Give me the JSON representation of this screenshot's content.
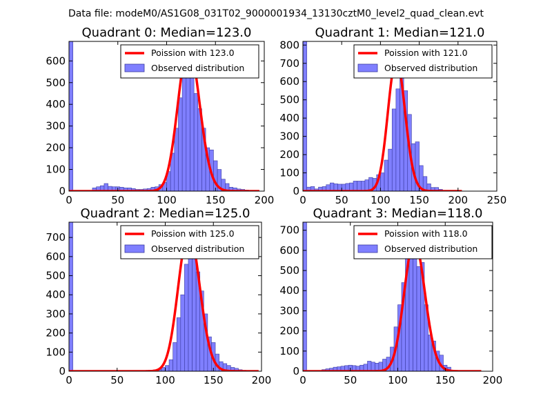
{
  "suptitle": "Data file: modeM0/AS1G08_031T02_9000001934_13130cztM0_level2_quad_clean.evt",
  "colors": {
    "bar_fill": "#7f7fff",
    "bar_edge": "#3a3a9e",
    "model_line": "#ff0000",
    "frame": "#000000"
  },
  "chart_data": [
    {
      "type": "bar",
      "title": "Quadrant 0: Median=123.0",
      "xlim": [
        0,
        200
      ],
      "ylim": [
        0,
        690
      ],
      "xticks": [
        0,
        50,
        100,
        150,
        200
      ],
      "yticks": [
        0,
        100,
        200,
        300,
        400,
        500,
        600
      ],
      "bin_width": 4,
      "hist": [
        {
          "x": 0,
          "y": 690
        },
        {
          "x": 24,
          "y": 15
        },
        {
          "x": 28,
          "y": 20
        },
        {
          "x": 32,
          "y": 25
        },
        {
          "x": 36,
          "y": 35
        },
        {
          "x": 40,
          "y": 22
        },
        {
          "x": 44,
          "y": 20
        },
        {
          "x": 48,
          "y": 20
        },
        {
          "x": 52,
          "y": 18
        },
        {
          "x": 56,
          "y": 15
        },
        {
          "x": 60,
          "y": 15
        },
        {
          "x": 64,
          "y": 12
        },
        {
          "x": 68,
          "y": 8
        },
        {
          "x": 72,
          "y": 8
        },
        {
          "x": 76,
          "y": 10
        },
        {
          "x": 80,
          "y": 12
        },
        {
          "x": 84,
          "y": 18
        },
        {
          "x": 88,
          "y": 20
        },
        {
          "x": 92,
          "y": 30
        },
        {
          "x": 96,
          "y": 40
        },
        {
          "x": 100,
          "y": 90
        },
        {
          "x": 104,
          "y": 175
        },
        {
          "x": 108,
          "y": 290
        },
        {
          "x": 112,
          "y": 430
        },
        {
          "x": 116,
          "y": 550
        },
        {
          "x": 120,
          "y": 610
        },
        {
          "x": 124,
          "y": 630
        },
        {
          "x": 128,
          "y": 450
        },
        {
          "x": 132,
          "y": 380
        },
        {
          "x": 136,
          "y": 290
        },
        {
          "x": 140,
          "y": 200
        },
        {
          "x": 144,
          "y": 190
        },
        {
          "x": 148,
          "y": 140
        },
        {
          "x": 152,
          "y": 100
        },
        {
          "x": 156,
          "y": 55
        },
        {
          "x": 160,
          "y": 35
        },
        {
          "x": 164,
          "y": 18
        },
        {
          "x": 168,
          "y": 15
        },
        {
          "x": 172,
          "y": 10
        },
        {
          "x": 176,
          "y": 8
        },
        {
          "x": 180,
          "y": 5
        },
        {
          "x": 184,
          "y": 3
        },
        {
          "x": 188,
          "y": 2
        }
      ],
      "poisson_mean": 123.0,
      "poisson_xrange": [
        0,
        195
      ],
      "legend_line": "Poission with 123.0",
      "legend_bar": "Observed distribution"
    },
    {
      "type": "bar",
      "title": "Quadrant 1: Median=121.0",
      "xlim": [
        0,
        250
      ],
      "ylim": [
        0,
        820
      ],
      "xticks": [
        0,
        50,
        100,
        150,
        200,
        250
      ],
      "yticks": [
        0,
        100,
        200,
        300,
        400,
        500,
        600,
        700,
        800
      ],
      "bin_width": 5,
      "hist": [
        {
          "x": 0,
          "y": 820
        },
        {
          "x": 5,
          "y": 22
        },
        {
          "x": 10,
          "y": 25
        },
        {
          "x": 15,
          "y": 12
        },
        {
          "x": 20,
          "y": 22
        },
        {
          "x": 25,
          "y": 25
        },
        {
          "x": 30,
          "y": 35
        },
        {
          "x": 35,
          "y": 45
        },
        {
          "x": 40,
          "y": 40
        },
        {
          "x": 45,
          "y": 38
        },
        {
          "x": 50,
          "y": 38
        },
        {
          "x": 55,
          "y": 42
        },
        {
          "x": 60,
          "y": 45
        },
        {
          "x": 65,
          "y": 55
        },
        {
          "x": 70,
          "y": 55
        },
        {
          "x": 75,
          "y": 55
        },
        {
          "x": 80,
          "y": 62
        },
        {
          "x": 85,
          "y": 75
        },
        {
          "x": 90,
          "y": 70
        },
        {
          "x": 95,
          "y": 90
        },
        {
          "x": 100,
          "y": 100
        },
        {
          "x": 105,
          "y": 170
        },
        {
          "x": 110,
          "y": 230
        },
        {
          "x": 115,
          "y": 450
        },
        {
          "x": 120,
          "y": 560
        },
        {
          "x": 125,
          "y": 680
        },
        {
          "x": 130,
          "y": 550
        },
        {
          "x": 135,
          "y": 420
        },
        {
          "x": 140,
          "y": 260
        },
        {
          "x": 145,
          "y": 270
        },
        {
          "x": 150,
          "y": 140
        },
        {
          "x": 155,
          "y": 80
        },
        {
          "x": 160,
          "y": 40
        },
        {
          "x": 165,
          "y": 20
        },
        {
          "x": 170,
          "y": 20
        },
        {
          "x": 175,
          "y": 10
        }
      ],
      "poisson_mean": 121.0,
      "poisson_xrange": [
        0,
        205
      ],
      "legend_line": "Poission with 121.0",
      "legend_bar": "Observed distribution"
    },
    {
      "type": "bar",
      "title": "Quadrant 2: Median=125.0",
      "xlim": [
        0,
        200
      ],
      "ylim": [
        0,
        780
      ],
      "xticks": [
        0,
        50,
        100,
        150,
        200
      ],
      "yticks": [
        0,
        100,
        200,
        300,
        400,
        500,
        600,
        700
      ],
      "bin_width": 4,
      "hist": [
        {
          "x": 0,
          "y": 780
        },
        {
          "x": 80,
          "y": 5
        },
        {
          "x": 84,
          "y": 5
        },
        {
          "x": 88,
          "y": 8
        },
        {
          "x": 92,
          "y": 10
        },
        {
          "x": 96,
          "y": 20
        },
        {
          "x": 100,
          "y": 30
        },
        {
          "x": 104,
          "y": 60
        },
        {
          "x": 108,
          "y": 150
        },
        {
          "x": 112,
          "y": 280
        },
        {
          "x": 116,
          "y": 400
        },
        {
          "x": 120,
          "y": 560
        },
        {
          "x": 124,
          "y": 690
        },
        {
          "x": 128,
          "y": 670
        },
        {
          "x": 132,
          "y": 520
        },
        {
          "x": 136,
          "y": 420
        },
        {
          "x": 140,
          "y": 300
        },
        {
          "x": 144,
          "y": 180
        },
        {
          "x": 148,
          "y": 150
        },
        {
          "x": 152,
          "y": 90
        },
        {
          "x": 156,
          "y": 50
        },
        {
          "x": 160,
          "y": 40
        },
        {
          "x": 164,
          "y": 30
        },
        {
          "x": 168,
          "y": 20
        },
        {
          "x": 172,
          "y": 15
        },
        {
          "x": 176,
          "y": 8
        },
        {
          "x": 180,
          "y": 5
        },
        {
          "x": 184,
          "y": 3
        }
      ],
      "poisson_mean": 125.0,
      "poisson_xrange": [
        0,
        197
      ],
      "legend_line": "Poission with 125.0",
      "legend_bar": "Observed distribution"
    },
    {
      "type": "bar",
      "title": "Quadrant 3: Median=118.0",
      "xlim": [
        0,
        200
      ],
      "ylim": [
        0,
        740
      ],
      "xticks": [
        0,
        50,
        100,
        150,
        200
      ],
      "yticks": [
        0,
        100,
        200,
        300,
        400,
        500,
        600,
        700
      ],
      "bin_width": 4,
      "hist": [
        {
          "x": 0,
          "y": 740
        },
        {
          "x": 20,
          "y": 8
        },
        {
          "x": 24,
          "y": 12
        },
        {
          "x": 28,
          "y": 15
        },
        {
          "x": 32,
          "y": 20
        },
        {
          "x": 36,
          "y": 22
        },
        {
          "x": 40,
          "y": 25
        },
        {
          "x": 44,
          "y": 28
        },
        {
          "x": 48,
          "y": 30
        },
        {
          "x": 52,
          "y": 28
        },
        {
          "x": 56,
          "y": 25
        },
        {
          "x": 60,
          "y": 30
        },
        {
          "x": 64,
          "y": 35
        },
        {
          "x": 68,
          "y": 50
        },
        {
          "x": 72,
          "y": 45
        },
        {
          "x": 76,
          "y": 40
        },
        {
          "x": 80,
          "y": 45
        },
        {
          "x": 84,
          "y": 60
        },
        {
          "x": 88,
          "y": 70
        },
        {
          "x": 92,
          "y": 120
        },
        {
          "x": 96,
          "y": 220
        },
        {
          "x": 100,
          "y": 330
        },
        {
          "x": 104,
          "y": 440
        },
        {
          "x": 108,
          "y": 560
        },
        {
          "x": 112,
          "y": 610
        },
        {
          "x": 116,
          "y": 590
        },
        {
          "x": 120,
          "y": 520
        },
        {
          "x": 124,
          "y": 540
        },
        {
          "x": 128,
          "y": 330
        },
        {
          "x": 132,
          "y": 180
        },
        {
          "x": 136,
          "y": 150
        },
        {
          "x": 140,
          "y": 100
        },
        {
          "x": 144,
          "y": 80
        },
        {
          "x": 148,
          "y": 30
        },
        {
          "x": 152,
          "y": 20
        },
        {
          "x": 156,
          "y": 5
        }
      ],
      "poisson_mean": 118.0,
      "poisson_xrange": [
        0,
        188
      ],
      "legend_line": "Poission with 118.0",
      "legend_bar": "Observed distribution"
    }
  ]
}
